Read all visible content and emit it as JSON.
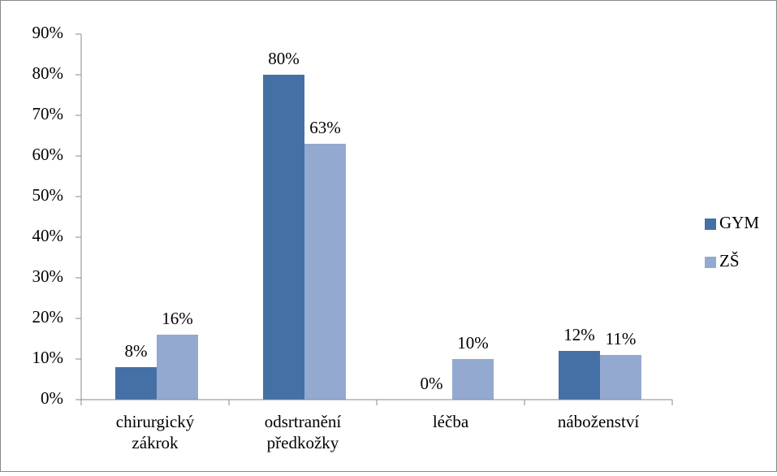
{
  "chart_data": {
    "type": "bar",
    "categories": [
      "chirurgický zákrok",
      "odsrtranění předkožky",
      "léčba",
      "náboženství"
    ],
    "series": [
      {
        "name": "GYM",
        "color": "#4470a6",
        "values": [
          8,
          80,
          0,
          12
        ],
        "value_labels": [
          "8%",
          "80%",
          "0%",
          "12%"
        ]
      },
      {
        "name": "ZŠ",
        "color": "#93a9d0",
        "values": [
          16,
          63,
          10,
          11
        ],
        "value_labels": [
          "16%",
          "63%",
          "10%",
          "11%"
        ]
      }
    ],
    "ylim": [
      0,
      90
    ],
    "yticks": [
      {
        "value": 0,
        "label": "0%"
      },
      {
        "value": 10,
        "label": "10%"
      },
      {
        "value": 20,
        "label": "20%"
      },
      {
        "value": 30,
        "label": "30%"
      },
      {
        "value": 40,
        "label": "40%"
      },
      {
        "value": 50,
        "label": "50%"
      },
      {
        "value": 60,
        "label": "60%"
      },
      {
        "value": 70,
        "label": "70%"
      },
      {
        "value": 80,
        "label": "80%"
      },
      {
        "value": 90,
        "label": "90%"
      }
    ],
    "grid": false,
    "legend": "right"
  }
}
